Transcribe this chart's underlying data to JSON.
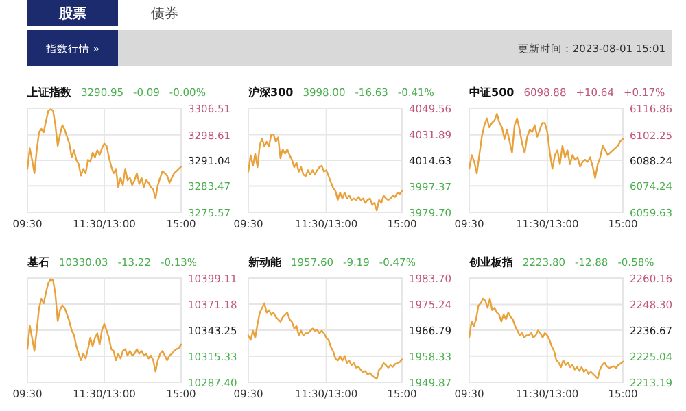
{
  "chart_data": [
    {
      "type": "other",
      "annotations": [
        "股票",
        "债券",
        "指数行情 »",
        "更新时间：2023-08-01 15:01"
      ]
    },
    {
      "type": "line",
      "title": "上证指数",
      "annotations": [
        "3290.95",
        "-0.09",
        "-0.00%"
      ],
      "color": "#e9a23b",
      "grid": true,
      "ylim": [
        3275.57,
        3306.51
      ],
      "yticks": [
        {
          "value": 3275.57,
          "label": "3275.57"
        },
        {
          "value": 3283.47,
          "label": "3283.47"
        },
        {
          "value": 3291.04,
          "label": "3291.04"
        },
        {
          "value": 3298.61,
          "label": "3298.61"
        },
        {
          "value": 3306.51,
          "label": "3306.51"
        }
      ],
      "categories": [
        "09:30",
        null,
        null,
        null,
        null,
        null,
        null,
        null,
        null,
        null,
        null,
        null,
        null,
        null,
        null,
        null,
        null,
        null,
        null,
        null,
        null,
        null,
        null,
        null,
        null,
        null,
        null,
        null,
        null,
        null,
        null,
        null,
        null,
        "11:30/13:00",
        null,
        null,
        null,
        null,
        null,
        null,
        null,
        null,
        null,
        null,
        null,
        null,
        null,
        null,
        null,
        null,
        null,
        null,
        null,
        null,
        null,
        null,
        null,
        null,
        null,
        null,
        null,
        null,
        null,
        null,
        null,
        null,
        "15:00"
      ],
      "values": [
        3288.5,
        3294.6,
        3291.2,
        3287.2,
        3294.0,
        3299.4,
        3300.4,
        3299.4,
        3302.8,
        3305.8,
        3306.2,
        3305.8,
        3301.5,
        3295.3,
        3298.7,
        3301.5,
        3300.1,
        3298.1,
        3296.0,
        3291.9,
        3294.0,
        3291.2,
        3289.9,
        3286.5,
        3288.5,
        3287.2,
        3291.2,
        3290.6,
        3293.3,
        3291.9,
        3294.0,
        3292.6,
        3294.6,
        3296.0,
        3295.3,
        3291.9,
        3289.2,
        3287.2,
        3288.5,
        3283.1,
        3285.8,
        3283.7,
        3288.5,
        3285.1,
        3285.8,
        3283.7,
        3285.1,
        3287.2,
        3284.0,
        3285.8,
        3283.1,
        3285.1,
        3284.4,
        3283.1,
        3282.4,
        3279.7,
        3283.7,
        3285.8,
        3287.8,
        3287.2,
        3286.5,
        3284.4,
        3285.8,
        3287.2,
        3287.8,
        3288.5,
        3289.2
      ]
    },
    {
      "type": "line",
      "title": "沪深300",
      "annotations": [
        "3998.00",
        "-16.63",
        "-0.41%"
      ],
      "color": "#e9a23b",
      "grid": true,
      "ylim": [
        3979.7,
        4049.56
      ],
      "yticks": [
        {
          "value": 3979.7,
          "label": "3979.70"
        },
        {
          "value": 3997.37,
          "label": "3997.37"
        },
        {
          "value": 4014.63,
          "label": "4014.63"
        },
        {
          "value": 4031.89,
          "label": "4031.89"
        },
        {
          "value": 4049.56,
          "label": "4049.56"
        }
      ],
      "categories": [
        "09:30",
        null,
        null,
        null,
        null,
        null,
        null,
        null,
        null,
        null,
        null,
        null,
        null,
        null,
        null,
        null,
        null,
        null,
        null,
        null,
        null,
        null,
        null,
        null,
        null,
        null,
        null,
        null,
        null,
        null,
        null,
        null,
        null,
        null,
        "11:30/13:00",
        null,
        null,
        null,
        null,
        null,
        null,
        null,
        null,
        null,
        null,
        null,
        null,
        null,
        null,
        null,
        null,
        null,
        null,
        null,
        null,
        null,
        null,
        null,
        null,
        null,
        null,
        null,
        null,
        null,
        null,
        null,
        null,
        "15:00"
      ],
      "values": [
        4007,
        4018,
        4011,
        4019,
        4010,
        4025,
        4029,
        4024,
        4027,
        4024,
        4032,
        4032,
        4027,
        4030,
        4016,
        4022,
        4019,
        4022,
        4018,
        4015,
        4010,
        4013,
        4007,
        4010,
        4005,
        4004,
        4008,
        4005,
        4008,
        4005,
        4008,
        4010,
        4011,
        4007,
        4008,
        4004,
        4000,
        3996,
        3994,
        3988,
        3993,
        3989,
        3993,
        3989,
        3991,
        3988,
        3989,
        3988,
        3990,
        3988,
        3989,
        3986,
        3988,
        3989,
        3985,
        3986,
        3981,
        3988,
        3986,
        3991,
        3989,
        3988,
        3989,
        3991,
        3990,
        3993,
        3992,
        3994
      ]
    },
    {
      "type": "line",
      "title": "中证500",
      "annotations": [
        "6098.88",
        "+10.64",
        "+0.17%"
      ],
      "color": "#e9a23b",
      "grid": true,
      "ylim": [
        6059.63,
        6116.86
      ],
      "yticks": [
        {
          "value": 6059.63,
          "label": "6059.63"
        },
        {
          "value": 6074.24,
          "label": "6074.24"
        },
        {
          "value": 6088.24,
          "label": "6088.24"
        },
        {
          "value": 6102.25,
          "label": "6102.25"
        },
        {
          "value": 6116.86,
          "label": "6116.86"
        }
      ],
      "categories": [
        "09:30",
        null,
        null,
        null,
        null,
        null,
        null,
        null,
        null,
        null,
        null,
        null,
        null,
        null,
        null,
        null,
        null,
        null,
        null,
        null,
        null,
        null,
        null,
        null,
        null,
        null,
        null,
        null,
        null,
        null,
        null,
        "11:30/13:00",
        null,
        null,
        null,
        null,
        null,
        null,
        null,
        null,
        null,
        null,
        null,
        null,
        null,
        null,
        null,
        null,
        null,
        null,
        null,
        null,
        null,
        null,
        null,
        null,
        null,
        null,
        null,
        null,
        null,
        "15:00"
      ],
      "values": [
        6083.6,
        6091.1,
        6087.4,
        6081.1,
        6091.1,
        6101.2,
        6107.5,
        6111.3,
        6106.3,
        6108.8,
        6110.1,
        6113.8,
        6108.8,
        6106.3,
        6100.0,
        6105.0,
        6098.7,
        6092.4,
        6107.5,
        6111.3,
        6105.0,
        6097.4,
        6092.4,
        6101.2,
        6105.0,
        6103.8,
        6107.5,
        6101.2,
        6105.0,
        6108.8,
        6108.8,
        6103.8,
        6092.4,
        6083.6,
        6091.1,
        6093.7,
        6086.1,
        6096.2,
        6089.9,
        6093.7,
        6086.1,
        6091.1,
        6088.6,
        6089.9,
        6084.8,
        6087.4,
        6088.6,
        6087.4,
        6089.9,
        6084.8,
        6078.5,
        6086.1,
        6089.9,
        6096.2,
        6093.7,
        6091.1,
        6092.4,
        6093.7,
        6095.0,
        6096.2,
        6098.7,
        6100.0
      ]
    },
    {
      "type": "line",
      "title": "基石",
      "annotations": [
        "10330.03",
        "-13.22",
        "-0.13%"
      ],
      "color": "#e9a23b",
      "grid": true,
      "ylim": [
        10287.4,
        10399.11
      ],
      "yticks": [
        {
          "value": 10287.4,
          "label": "10287.40"
        },
        {
          "value": 10315.33,
          "label": "10315.33"
        },
        {
          "value": 10343.25,
          "label": "10343.25"
        },
        {
          "value": 10371.18,
          "label": "10371.18"
        },
        {
          "value": 10399.11,
          "label": "10399.11"
        }
      ],
      "categories": [
        "09:30",
        null,
        null,
        null,
        null,
        null,
        null,
        null,
        null,
        null,
        null,
        null,
        null,
        null,
        null,
        null,
        null,
        null,
        null,
        null,
        null,
        null,
        null,
        null,
        null,
        null,
        null,
        null,
        null,
        null,
        null,
        null,
        null,
        "11:30/13:00",
        null,
        null,
        null,
        null,
        null,
        null,
        null,
        null,
        null,
        null,
        null,
        null,
        null,
        null,
        null,
        null,
        null,
        null,
        null,
        null,
        null,
        null,
        null,
        null,
        null,
        null,
        null,
        null,
        null,
        null,
        null,
        null,
        "15:00"
      ],
      "values": [
        10323,
        10348,
        10335,
        10321,
        10343,
        10367,
        10377,
        10372,
        10384,
        10394,
        10398,
        10397,
        10382,
        10353,
        10365,
        10370,
        10367,
        10360,
        10353,
        10343,
        10338,
        10326,
        10318,
        10311,
        10318,
        10313,
        10323,
        10335,
        10326,
        10335,
        10340,
        10328,
        10343,
        10350,
        10343,
        10335,
        10323,
        10321,
        10311,
        10318,
        10313,
        10321,
        10323,
        10316,
        10321,
        10316,
        10318,
        10323,
        10318,
        10321,
        10316,
        10318,
        10313,
        10316,
        10311,
        10299,
        10311,
        10318,
        10321,
        10316,
        10311,
        10316,
        10318,
        10321,
        10323,
        10324,
        10328
      ]
    },
    {
      "type": "line",
      "title": "新动能",
      "annotations": [
        "1957.60",
        "-9.19",
        "-0.47%"
      ],
      "color": "#e9a23b",
      "grid": true,
      "ylim": [
        1949.87,
        1983.7
      ],
      "yticks": [
        {
          "value": 1949.87,
          "label": "1949.87"
        },
        {
          "value": 1958.33,
          "label": "1958.33"
        },
        {
          "value": 1966.79,
          "label": "1966.79"
        },
        {
          "value": 1975.24,
          "label": "1975.24"
        },
        {
          "value": 1983.7,
          "label": "1983.70"
        }
      ],
      "categories": [
        "09:30",
        null,
        null,
        null,
        null,
        null,
        null,
        null,
        null,
        null,
        null,
        null,
        null,
        null,
        null,
        null,
        null,
        null,
        null,
        null,
        null,
        null,
        null,
        null,
        null,
        null,
        null,
        null,
        null,
        null,
        null,
        null,
        null,
        null,
        "11:30/13:00",
        null,
        null,
        null,
        null,
        null,
        null,
        null,
        null,
        null,
        null,
        null,
        null,
        null,
        null,
        null,
        null,
        null,
        null,
        null,
        null,
        null,
        null,
        null,
        null,
        null,
        null,
        null,
        null,
        null,
        null,
        null,
        null,
        "15:00"
      ],
      "values": [
        1965.1,
        1963.6,
        1966.6,
        1964.3,
        1968.8,
        1972.5,
        1974.0,
        1975.5,
        1972.5,
        1973.3,
        1971.8,
        1972.5,
        1971.0,
        1970.3,
        1969.5,
        1971.0,
        1971.8,
        1972.5,
        1970.3,
        1969.5,
        1967.3,
        1968.1,
        1965.1,
        1966.6,
        1965.1,
        1965.8,
        1965.8,
        1966.6,
        1967.3,
        1966.6,
        1966.9,
        1965.8,
        1966.6,
        1965.8,
        1964.3,
        1963.6,
        1961.3,
        1959.9,
        1957.6,
        1956.9,
        1958.4,
        1956.9,
        1958.4,
        1956.1,
        1956.9,
        1955.4,
        1956.1,
        1954.6,
        1954.9,
        1953.9,
        1953.2,
        1953.5,
        1952.4,
        1952.9,
        1952.0,
        1951.4,
        1950.9,
        1953.9,
        1954.6,
        1956.1,
        1955.4,
        1954.6,
        1955.4,
        1954.9,
        1955.8,
        1956.1,
        1956.4,
        1957.3
      ]
    },
    {
      "type": "line",
      "title": "创业板指",
      "annotations": [
        "2223.80",
        "-12.88",
        "-0.58%"
      ],
      "color": "#e9a23b",
      "grid": true,
      "ylim": [
        2213.19,
        2260.16
      ],
      "yticks": [
        {
          "value": 2213.19,
          "label": "2213.19"
        },
        {
          "value": 2225.04,
          "label": "2225.04"
        },
        {
          "value": 2236.67,
          "label": "2236.67"
        },
        {
          "value": 2248.3,
          "label": "2248.30"
        },
        {
          "value": 2260.16,
          "label": "2260.16"
        }
      ],
      "categories": [
        "09:30",
        null,
        null,
        null,
        null,
        null,
        null,
        null,
        null,
        null,
        null,
        null,
        null,
        null,
        null,
        null,
        null,
        null,
        null,
        null,
        null,
        null,
        null,
        null,
        null,
        null,
        null,
        null,
        null,
        null,
        null,
        null,
        null,
        null,
        "11:30/13:00",
        null,
        null,
        null,
        null,
        null,
        null,
        null,
        null,
        null,
        null,
        null,
        null,
        null,
        null,
        null,
        null,
        null,
        null,
        null,
        null,
        null,
        null,
        null,
        null,
        null,
        null,
        null,
        null,
        null,
        null,
        null,
        null,
        "15:00"
      ],
      "values": [
        2233.4,
        2240.6,
        2238.5,
        2241.6,
        2247.8,
        2248.8,
        2250.9,
        2249.9,
        2246.8,
        2250.9,
        2245.7,
        2246.8,
        2244.7,
        2243.7,
        2240.6,
        2243.7,
        2241.6,
        2244.7,
        2242.7,
        2241.6,
        2238.5,
        2236.5,
        2234.4,
        2235.4,
        2233.4,
        2234.4,
        2234.4,
        2235.4,
        2233.4,
        2234.4,
        2236.5,
        2235.4,
        2233.4,
        2235.4,
        2234.4,
        2232.3,
        2229.3,
        2227.2,
        2223.1,
        2222.0,
        2220.0,
        2223.1,
        2221.0,
        2222.0,
        2220.0,
        2221.0,
        2218.9,
        2220.0,
        2218.3,
        2220.0,
        2217.9,
        2218.9,
        2216.9,
        2217.9,
        2216.9,
        2215.9,
        2214.8,
        2218.9,
        2221.0,
        2222.0,
        2220.4,
        2219.6,
        2220.0,
        2220.4,
        2219.6,
        2221.0,
        2221.6,
        2222.5
      ]
    }
  ]
}
